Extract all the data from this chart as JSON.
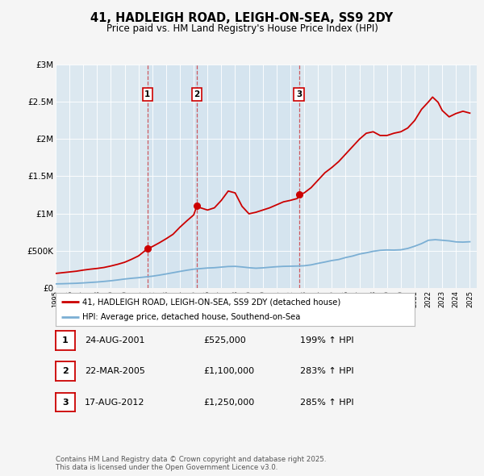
{
  "title": "41, HADLEIGH ROAD, LEIGH-ON-SEA, SS9 2DY",
  "subtitle": "Price paid vs. HM Land Registry's House Price Index (HPI)",
  "fig_bg_color": "#f5f5f5",
  "plot_bg_color": "#dce8f0",
  "red_line_label": "41, HADLEIGH ROAD, LEIGH-ON-SEA, SS9 2DY (detached house)",
  "blue_line_label": "HPI: Average price, detached house, Southend-on-Sea",
  "red_color": "#cc0000",
  "blue_color": "#7bafd4",
  "transactions": [
    {
      "num": 1,
      "date_str": "24-AUG-2001",
      "price_str": "£525,000",
      "pct_str": "199% ↑ HPI",
      "x_year": 2001.646,
      "y_val": 525000
    },
    {
      "num": 2,
      "date_str": "22-MAR-2005",
      "price_str": "£1,100,000",
      "pct_str": "283% ↑ HPI",
      "x_year": 2005.22,
      "y_val": 1100000
    },
    {
      "num": 3,
      "date_str": "17-AUG-2012",
      "price_str": "£1,250,000",
      "pct_str": "285% ↑ HPI",
      "x_year": 2012.629,
      "y_val": 1250000
    }
  ],
  "footer": "Contains HM Land Registry data © Crown copyright and database right 2025.\nThis data is licensed under the Open Government Licence v3.0.",
  "ylim": [
    0,
    3000000
  ],
  "yticks": [
    0,
    500000,
    1000000,
    1500000,
    2000000,
    2500000,
    3000000
  ],
  "ytick_labels": [
    "£0",
    "£500K",
    "£1M",
    "£1.5M",
    "£2M",
    "£2.5M",
    "£3M"
  ],
  "xlim": [
    1995,
    2025.5
  ],
  "hpi_years": [
    1995,
    1995.5,
    1996,
    1996.5,
    1997,
    1997.5,
    1998,
    1998.5,
    1999,
    1999.5,
    2000,
    2000.5,
    2001,
    2001.5,
    2002,
    2002.5,
    2003,
    2003.5,
    2004,
    2004.5,
    2005,
    2005.5,
    2006,
    2006.5,
    2007,
    2007.5,
    2008,
    2008.5,
    2009,
    2009.5,
    2010,
    2010.5,
    2011,
    2011.5,
    2012,
    2012.5,
    2013,
    2013.5,
    2014,
    2014.5,
    2015,
    2015.5,
    2016,
    2016.5,
    2017,
    2017.5,
    2018,
    2018.5,
    2019,
    2019.5,
    2020,
    2020.5,
    2021,
    2021.5,
    2022,
    2022.5,
    2023,
    2023.5,
    2024,
    2024.5,
    2025
  ],
  "hpi_values": [
    55000,
    57000,
    60000,
    63000,
    68000,
    74000,
    80000,
    88000,
    97000,
    108000,
    120000,
    130000,
    138000,
    148000,
    158000,
    172000,
    188000,
    205000,
    222000,
    238000,
    252000,
    260000,
    268000,
    272000,
    280000,
    288000,
    290000,
    282000,
    272000,
    265000,
    270000,
    278000,
    285000,
    290000,
    292000,
    294000,
    298000,
    310000,
    330000,
    348000,
    368000,
    382000,
    408000,
    428000,
    455000,
    472000,
    492000,
    505000,
    510000,
    508000,
    512000,
    530000,
    560000,
    595000,
    640000,
    648000,
    640000,
    632000,
    618000,
    615000,
    620000
  ],
  "price_years": [
    1995.0,
    1995.5,
    1996.0,
    1996.5,
    1997.0,
    1997.5,
    1998.0,
    1998.5,
    1999.0,
    1999.5,
    2000.0,
    2000.5,
    2001.0,
    2001.646,
    2001.646,
    2002.0,
    2002.5,
    2003.0,
    2003.5,
    2004.0,
    2004.5,
    2005.0,
    2005.22,
    2005.22,
    2005.5,
    2006.0,
    2006.5,
    2007.0,
    2007.5,
    2008.0,
    2008.5,
    2009.0,
    2009.5,
    2010.0,
    2010.5,
    2011.0,
    2011.5,
    2012.0,
    2012.5,
    2012.629,
    2012.629,
    2013.0,
    2013.5,
    2014.0,
    2014.5,
    2015.0,
    2015.5,
    2016.0,
    2016.5,
    2017.0,
    2017.5,
    2018.0,
    2018.5,
    2019.0,
    2019.5,
    2020.0,
    2020.5,
    2021.0,
    2021.5,
    2022.0,
    2022.3,
    2022.7,
    2023.0,
    2023.5,
    2024.0,
    2024.5,
    2025.0
  ],
  "price_values": [
    195000,
    205000,
    215000,
    225000,
    240000,
    252000,
    262000,
    275000,
    295000,
    318000,
    345000,
    385000,
    430000,
    525000,
    525000,
    555000,
    605000,
    660000,
    720000,
    815000,
    900000,
    980000,
    1100000,
    1100000,
    1075000,
    1045000,
    1075000,
    1175000,
    1300000,
    1275000,
    1095000,
    995000,
    1015000,
    1045000,
    1075000,
    1115000,
    1155000,
    1175000,
    1200000,
    1250000,
    1250000,
    1275000,
    1345000,
    1445000,
    1545000,
    1615000,
    1695000,
    1795000,
    1895000,
    1995000,
    2075000,
    2095000,
    2045000,
    2045000,
    2075000,
    2095000,
    2145000,
    2245000,
    2395000,
    2495000,
    2560000,
    2490000,
    2380000,
    2295000,
    2340000,
    2370000,
    2345000
  ]
}
